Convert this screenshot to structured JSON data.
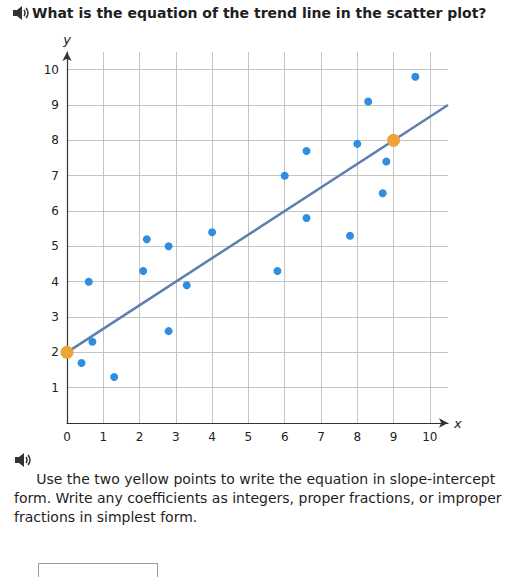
{
  "question": "What is the equation of the trend line in the scatter plot?",
  "instructions": "Use the two yellow points to write the equation in slope-intercept form. Write any coefficients as integers, proper fractions, or improper fractions in simplest form.",
  "chart_data": {
    "type": "scatter",
    "x_label": "x",
    "y_label": "y",
    "xlim": [
      0,
      10.5
    ],
    "ylim": [
      0,
      10.5
    ],
    "xticks": [
      0,
      1,
      2,
      3,
      4,
      5,
      6,
      7,
      8,
      9,
      10
    ],
    "yticks": [
      1,
      2,
      3,
      4,
      5,
      6,
      7,
      8,
      9,
      10
    ],
    "grid": true,
    "series": [
      {
        "type": "scatter",
        "color": "#2f8ee0",
        "marker": "circle",
        "x": [
          0.4,
          0.7,
          1.3,
          0.6,
          2.1,
          2.2,
          2.8,
          2.8,
          3.3,
          4.0,
          5.8,
          6.0,
          6.6,
          6.6,
          7.8,
          8.0,
          8.3,
          8.8,
          8.7,
          9.6
        ],
        "values": [
          1.7,
          2.3,
          1.3,
          4.0,
          4.3,
          5.2,
          5.0,
          2.6,
          3.9,
          5.4,
          4.3,
          7.0,
          5.8,
          7.7,
          5.3,
          7.9,
          9.1,
          7.4,
          6.5,
          9.8
        ]
      },
      {
        "type": "scatter",
        "color": "#eea33a",
        "marker": "circle",
        "x": [
          0,
          9
        ],
        "values": [
          2,
          8
        ]
      },
      {
        "type": "line",
        "color": "#5d7fae",
        "line_style": "solid",
        "x": [
          0,
          10.5
        ],
        "values": [
          2,
          9
        ]
      }
    ]
  }
}
